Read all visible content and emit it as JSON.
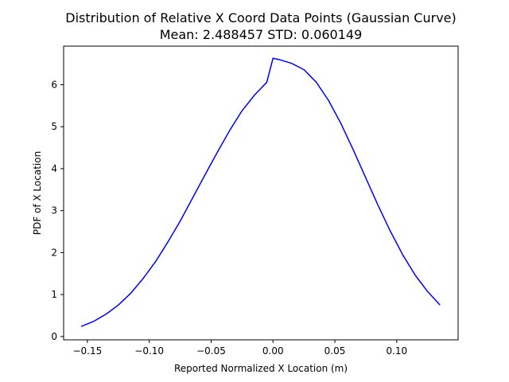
{
  "chart_data": {
    "type": "line",
    "title": "Distribution of Relative X Coord Data Points (Gaussian Curve)",
    "subtitle": "Mean: 2.488457 STD: 0.060149",
    "xlabel": "Reported Normalized X Location (m)",
    "ylabel": "PDF of X Location",
    "xlim": [
      -0.1692,
      0.1496
    ],
    "ylim": [
      -0.0788,
      6.9192
    ],
    "xticks": [
      -0.15,
      -0.1,
      -0.05,
      0.0,
      0.05,
      0.1
    ],
    "xtick_labels": [
      "−0.15",
      "−0.10",
      "−0.05",
      "0.00",
      "0.05",
      "0.10"
    ],
    "yticks": [
      0,
      1,
      2,
      3,
      4,
      5,
      6
    ],
    "ytick_labels": [
      "0",
      "1",
      "2",
      "3",
      "4",
      "5",
      "6"
    ],
    "grid": false,
    "series": [
      {
        "color": "#0000ff",
        "x": [
          -0.155,
          -0.145,
          -0.135,
          -0.125,
          -0.115,
          -0.105,
          -0.095,
          -0.085,
          -0.075,
          -0.065,
          -0.055,
          -0.045,
          -0.035,
          -0.025,
          -0.015,
          -0.005,
          0.0,
          0.005,
          0.015,
          0.025,
          0.035,
          0.045,
          0.055,
          0.065,
          0.075,
          0.085,
          0.095,
          0.105,
          0.115,
          0.125,
          0.135
        ],
        "y": [
          0.24,
          0.36,
          0.53,
          0.75,
          1.03,
          1.38,
          1.78,
          2.25,
          2.75,
          3.3,
          3.85,
          4.39,
          4.91,
          5.38,
          5.75,
          6.06,
          6.63,
          6.6,
          6.51,
          6.36,
          6.06,
          5.62,
          5.07,
          4.44,
          3.78,
          3.12,
          2.5,
          1.94,
          1.46,
          1.07,
          0.75
        ]
      }
    ]
  }
}
